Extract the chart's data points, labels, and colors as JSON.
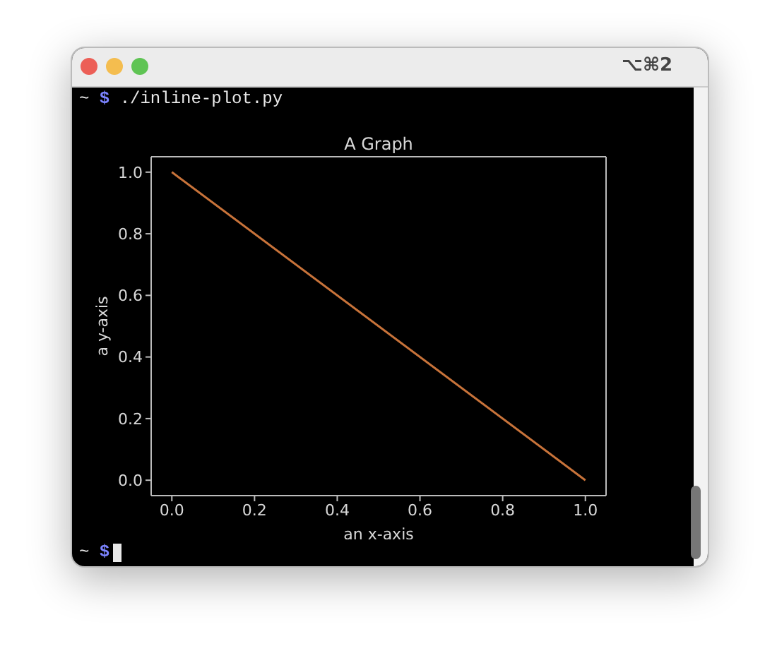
{
  "chart_data": {
    "type": "line",
    "title": "A Graph",
    "xlabel": "an x-axis",
    "ylabel": "a y-axis",
    "x": [
      0,
      1
    ],
    "series": [
      {
        "color": "#c8733a",
        "values": [
          1,
          0
        ]
      }
    ],
    "xlim": [
      -0.05,
      1.05
    ],
    "ylim": [
      -0.05,
      1.05
    ],
    "xticks": [
      {
        "value": 0,
        "label": "0.0"
      },
      {
        "value": 0.2,
        "label": "0.2"
      },
      {
        "value": 0.4,
        "label": "0.4"
      },
      {
        "value": 0.6,
        "label": "0.6"
      },
      {
        "value": 0.8,
        "label": "0.8"
      },
      {
        "value": 1,
        "label": "1.0"
      }
    ],
    "yticks": [
      {
        "value": 0,
        "label": "0.0"
      },
      {
        "value": 0.2,
        "label": "0.2"
      },
      {
        "value": 0.4,
        "label": "0.4"
      },
      {
        "value": 0.6,
        "label": "0.6"
      },
      {
        "value": 0.8,
        "label": "0.8"
      },
      {
        "value": 1,
        "label": "1.0"
      }
    ],
    "annotations": [
      "~ $ ./inline-plot.py",
      "⌥⌘2",
      "~ $"
    ]
  }
}
